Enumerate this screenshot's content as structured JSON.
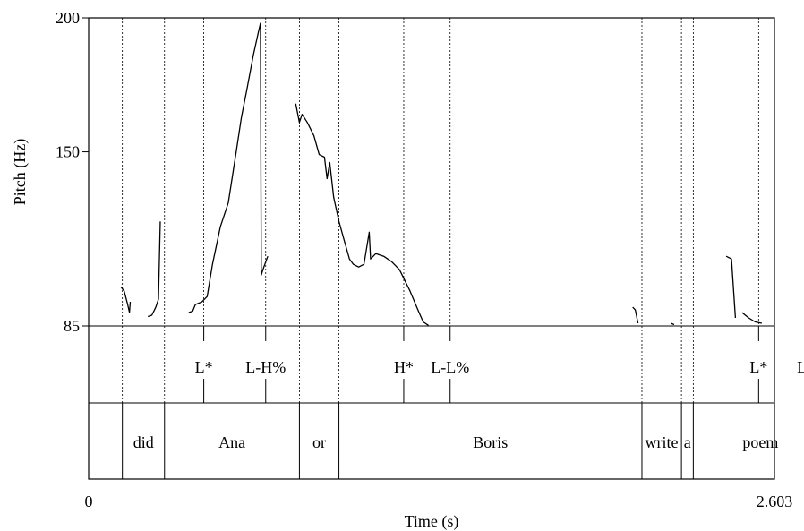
{
  "chart_data": {
    "type": "line",
    "xlabel": "Time (s)",
    "ylabel": "Pitch (Hz)",
    "xlim": [
      0,
      2.603
    ],
    "ylim": [
      85,
      200
    ],
    "x_ticks": [
      "0",
      "2.603"
    ],
    "y_ticks": [
      "85",
      "150",
      "200"
    ],
    "y_tick_values": [
      85,
      150,
      200
    ],
    "pitch_segments": [
      [
        [
          0.123,
          99.5
        ],
        [
          0.135,
          98
        ],
        [
          0.148,
          93
        ],
        [
          0.155,
          90
        ],
        [
          0.158,
          94
        ]
      ],
      [
        [
          0.225,
          88.5
        ],
        [
          0.24,
          89
        ],
        [
          0.255,
          92
        ],
        [
          0.265,
          95
        ],
        [
          0.272,
          124
        ]
      ],
      [
        [
          0.38,
          90
        ],
        [
          0.395,
          90.5
        ],
        [
          0.405,
          93
        ],
        [
          0.43,
          94
        ],
        [
          0.45,
          96
        ],
        [
          0.47,
          108
        ],
        [
          0.5,
          122
        ],
        [
          0.53,
          131
        ],
        [
          0.56,
          150
        ],
        [
          0.58,
          163
        ],
        [
          0.6,
          173
        ],
        [
          0.625,
          186
        ],
        [
          0.645,
          195
        ],
        [
          0.652,
          198
        ],
        [
          0.655,
          104
        ],
        [
          0.665,
          107
        ],
        [
          0.68,
          111
        ]
      ],
      [
        [
          0.786,
          168
        ],
        [
          0.8,
          161
        ],
        [
          0.81,
          164
        ],
        [
          0.83,
          161
        ],
        [
          0.855,
          156
        ],
        [
          0.875,
          149
        ],
        [
          0.895,
          148
        ],
        [
          0.905,
          140
        ],
        [
          0.915,
          146
        ],
        [
          0.93,
          133
        ],
        [
          0.95,
          124
        ],
        [
          0.97,
          117
        ],
        [
          0.99,
          110
        ],
        [
          1.005,
          108
        ],
        [
          1.025,
          107
        ],
        [
          1.045,
          108
        ],
        [
          1.065,
          120
        ],
        [
          1.07,
          110
        ],
        [
          1.09,
          112
        ],
        [
          1.12,
          111
        ],
        [
          1.15,
          109
        ],
        [
          1.18,
          106
        ],
        [
          1.22,
          98
        ],
        [
          1.25,
          91
        ],
        [
          1.27,
          86.5
        ],
        [
          1.29,
          85.2
        ]
      ],
      [
        [
          2.065,
          92
        ],
        [
          2.075,
          91
        ],
        [
          2.085,
          86
        ]
      ],
      [
        [
          2.21,
          86
        ],
        [
          2.222,
          85.5
        ]
      ],
      [
        [
          2.42,
          111
        ],
        [
          2.44,
          110
        ],
        [
          2.455,
          88
        ]
      ],
      [
        [
          2.48,
          90
        ],
        [
          2.505,
          88
        ],
        [
          2.53,
          86.5
        ],
        [
          2.555,
          86
        ]
      ],
      [
        [
          2.745,
          89
        ],
        [
          2.758,
          94
        ]
      ]
    ]
  },
  "tiers": {
    "tones": [
      {
        "label": "L*",
        "time": 0.437
      },
      {
        "label": "L-H%",
        "time": 0.672
      },
      {
        "label": "H*",
        "time": 1.196
      },
      {
        "label": "L-L%",
        "time": 1.372
      },
      {
        "label": "L*",
        "time": 2.543
      },
      {
        "label": "L-L%",
        "time": 2.762
      }
    ],
    "words": [
      {
        "label": "did",
        "start": 0.128,
        "end": 0.288
      },
      {
        "label": "Ana",
        "start": 0.288,
        "end": 0.8
      },
      {
        "label": "or",
        "start": 0.8,
        "end": 0.95
      },
      {
        "label": "Boris",
        "start": 0.95,
        "end": 2.1
      },
      {
        "label": "write",
        "start": 2.1,
        "end": 2.25
      },
      {
        "label": "a",
        "start": 2.25,
        "end": 2.295
      },
      {
        "label": "poem",
        "start": 2.295,
        "end": 2.805
      }
    ]
  }
}
